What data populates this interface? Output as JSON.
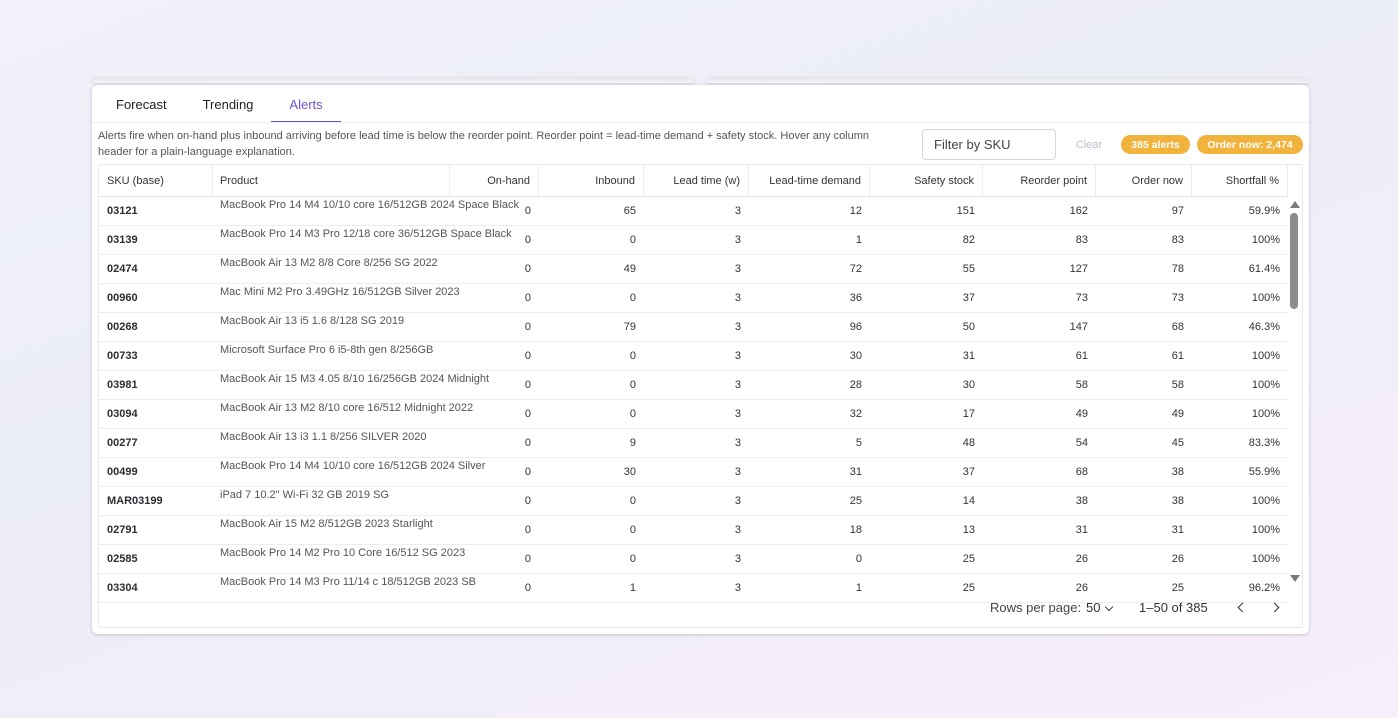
{
  "tabs": [
    {
      "label": "Forecast",
      "active": false
    },
    {
      "label": "Trending",
      "active": false
    },
    {
      "label": "Alerts",
      "active": true
    }
  ],
  "description": "Alerts fire when on-hand plus inbound arriving before lead time is below the reorder point. Reorder point = lead-time demand + safety stock. Hover any column header for a plain-language explanation.",
  "filter": {
    "placeholder": "Filter by SKU",
    "value": ""
  },
  "clear_label": "Clear",
  "badges": {
    "alerts": "385 alerts",
    "order_now": "Order now: 2,474",
    "color": "#f2b33d"
  },
  "accent_color": "#6f52d6",
  "columns": [
    "SKU (base)",
    "Product",
    "On-hand",
    "Inbound",
    "Lead time (w)",
    "Lead-time demand",
    "Safety stock",
    "Reorder point",
    "Order now",
    "Shortfall %"
  ],
  "rows": [
    {
      "sku": "03121",
      "product": "MacBook Pro 14 M4 10/10 core 16/512GB 2024 Space Black",
      "on_hand": "0",
      "inbound": "65",
      "lead": "3",
      "ltd": "12",
      "safety": "151",
      "reorder": "162",
      "order": "97",
      "shortfall": "59.9%"
    },
    {
      "sku": "03139",
      "product": "MacBook Pro 14 M3 Pro 12/18 core 36/512GB Space Black",
      "on_hand": "0",
      "inbound": "0",
      "lead": "3",
      "ltd": "1",
      "safety": "82",
      "reorder": "83",
      "order": "83",
      "shortfall": "100%"
    },
    {
      "sku": "02474",
      "product": "MacBook Air 13 M2 8/8 Core 8/256 SG 2022",
      "on_hand": "0",
      "inbound": "49",
      "lead": "3",
      "ltd": "72",
      "safety": "55",
      "reorder": "127",
      "order": "78",
      "shortfall": "61.4%"
    },
    {
      "sku": "00960",
      "product": "Mac Mini M2 Pro 3.49GHz 16/512GB Silver 2023",
      "on_hand": "0",
      "inbound": "0",
      "lead": "3",
      "ltd": "36",
      "safety": "37",
      "reorder": "73",
      "order": "73",
      "shortfall": "100%"
    },
    {
      "sku": "00268",
      "product": "MacBook Air 13 i5 1.6 8/128 SG 2019",
      "on_hand": "0",
      "inbound": "79",
      "lead": "3",
      "ltd": "96",
      "safety": "50",
      "reorder": "147",
      "order": "68",
      "shortfall": "46.3%"
    },
    {
      "sku": "00733",
      "product": "Microsoft Surface Pro 6 i5-8th gen 8/256GB",
      "on_hand": "0",
      "inbound": "0",
      "lead": "3",
      "ltd": "30",
      "safety": "31",
      "reorder": "61",
      "order": "61",
      "shortfall": "100%"
    },
    {
      "sku": "03981",
      "product": "MacBook Air 15 M3 4.05 8/10 16/256GB 2024 Midnight",
      "on_hand": "0",
      "inbound": "0",
      "lead": "3",
      "ltd": "28",
      "safety": "30",
      "reorder": "58",
      "order": "58",
      "shortfall": "100%"
    },
    {
      "sku": "03094",
      "product": "MacBook Air 13 M2 8/10 core 16/512 Midnight 2022",
      "on_hand": "0",
      "inbound": "0",
      "lead": "3",
      "ltd": "32",
      "safety": "17",
      "reorder": "49",
      "order": "49",
      "shortfall": "100%"
    },
    {
      "sku": "00277",
      "product": "MacBook Air 13 i3 1.1 8/256 SILVER 2020",
      "on_hand": "0",
      "inbound": "9",
      "lead": "3",
      "ltd": "5",
      "safety": "48",
      "reorder": "54",
      "order": "45",
      "shortfall": "83.3%"
    },
    {
      "sku": "00499",
      "product": "MacBook Pro 14 M4 10/10 core 16/512GB 2024 Silver",
      "on_hand": "0",
      "inbound": "30",
      "lead": "3",
      "ltd": "31",
      "safety": "37",
      "reorder": "68",
      "order": "38",
      "shortfall": "55.9%"
    },
    {
      "sku": "MAR03199",
      "product": "iPad 7 10.2\" Wi-Fi 32 GB 2019 SG",
      "on_hand": "0",
      "inbound": "0",
      "lead": "3",
      "ltd": "25",
      "safety": "14",
      "reorder": "38",
      "order": "38",
      "shortfall": "100%"
    },
    {
      "sku": "02791",
      "product": "MacBook Air 15 M2 8/512GB 2023 Starlight",
      "on_hand": "0",
      "inbound": "0",
      "lead": "3",
      "ltd": "18",
      "safety": "13",
      "reorder": "31",
      "order": "31",
      "shortfall": "100%"
    },
    {
      "sku": "02585",
      "product": "MacBook Pro 14 M2 Pro 10 Core 16/512 SG 2023",
      "on_hand": "0",
      "inbound": "0",
      "lead": "3",
      "ltd": "0",
      "safety": "25",
      "reorder": "26",
      "order": "26",
      "shortfall": "100%"
    },
    {
      "sku": "03304",
      "product": "MacBook Pro 14 M3 Pro 11/14 c 18/512GB 2023 SB",
      "on_hand": "0",
      "inbound": "1",
      "lead": "3",
      "ltd": "1",
      "safety": "25",
      "reorder": "26",
      "order": "25",
      "shortfall": "96.2%"
    }
  ],
  "pagination": {
    "rows_per_page_label": "Rows per page:",
    "rows_per_page": "50",
    "range": "1–50 of 385"
  }
}
